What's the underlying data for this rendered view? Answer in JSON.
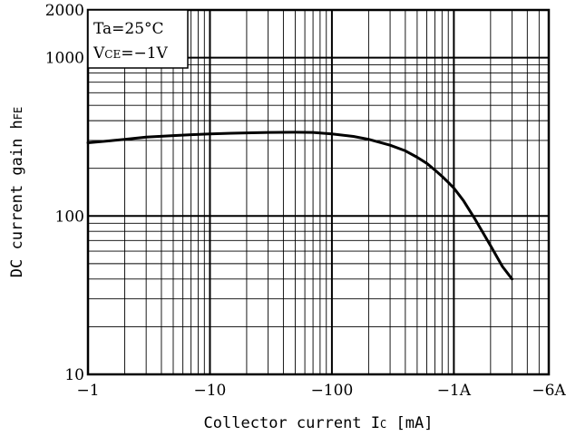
{
  "chart_data": {
    "type": "line",
    "title": "",
    "xlabel": "Collector current Ic [mA]",
    "xlabel_parts": {
      "main": "Collector current I",
      "sub": "C",
      "unit": " [mA]"
    },
    "ylabel": "DC current gain hFE",
    "ylabel_parts": {
      "main": "DC current gain h",
      "sub": "FE"
    },
    "xscale": "log",
    "yscale": "log",
    "xlim": [
      1,
      6000
    ],
    "ylim": [
      10,
      2000
    ],
    "grid": true,
    "x_tick_labels": [
      {
        "value": 1,
        "label": "−1"
      },
      {
        "value": 10,
        "label": "−10"
      },
      {
        "value": 100,
        "label": "−100"
      },
      {
        "value": 1000,
        "label": "−1A"
      },
      {
        "value": 6000,
        "label": "−6A"
      }
    ],
    "y_tick_labels": [
      {
        "value": 10,
        "label": "10"
      },
      {
        "value": 100,
        "label": "100"
      },
      {
        "value": 1000,
        "label": "1000"
      },
      {
        "value": 2000,
        "label": "2000"
      }
    ],
    "annotations": {
      "ta": "Ta=25°C",
      "vce_main": "V",
      "vce_sub": "CE",
      "vce_value": "=−1V"
    },
    "series": [
      {
        "x": [
          1,
          1.5,
          2,
          3,
          5,
          7,
          10,
          15,
          20,
          30,
          50,
          70,
          100,
          150,
          200,
          300,
          400,
          500,
          600,
          700,
          800,
          900,
          1000,
          1200,
          1500,
          2000,
          2500,
          3000
        ],
        "values": [
          290,
          298,
          305,
          315,
          322,
          326,
          330,
          333,
          335,
          337,
          338,
          337,
          330,
          318,
          305,
          280,
          258,
          235,
          215,
          195,
          178,
          163,
          150,
          125,
          95,
          65,
          48,
          40
        ]
      }
    ]
  }
}
